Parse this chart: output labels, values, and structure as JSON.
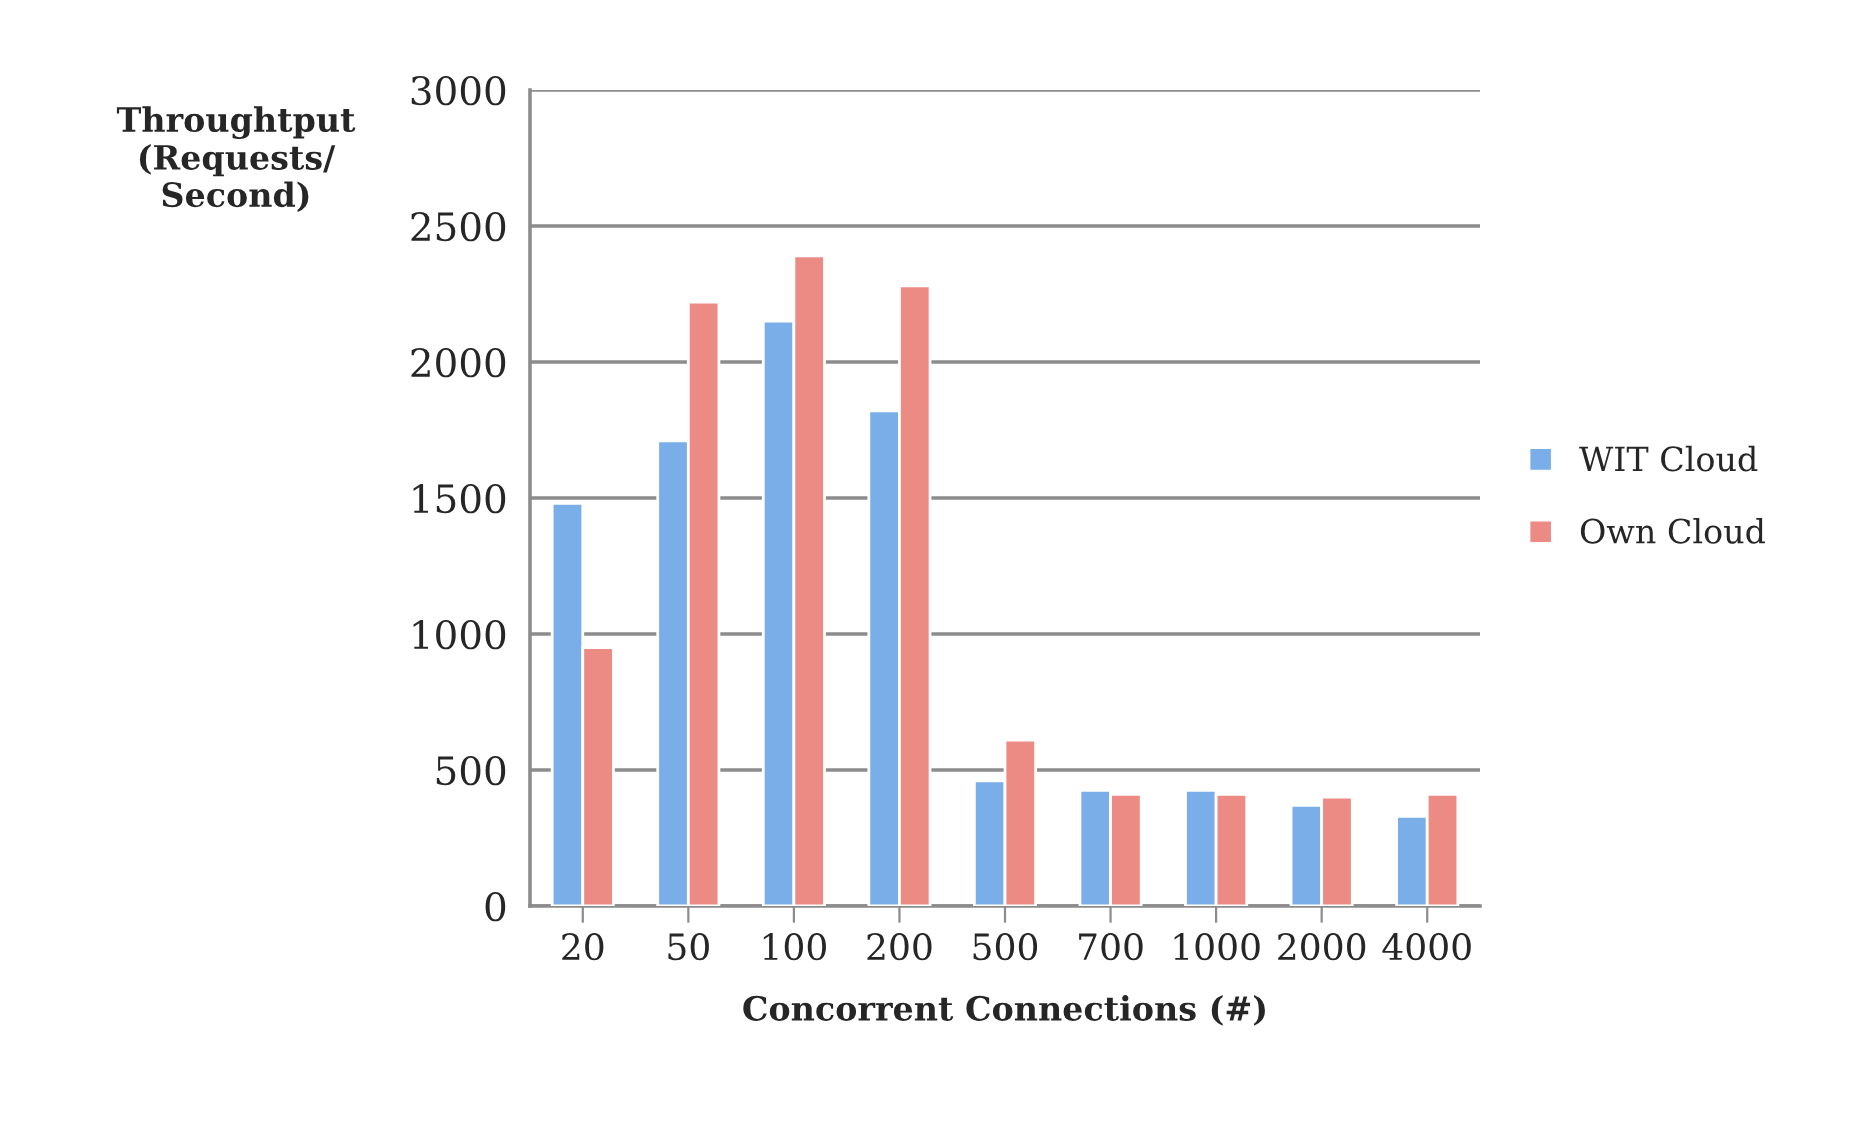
{
  "chart_data": {
    "type": "bar",
    "categories": [
      "20",
      "50",
      "100",
      "200",
      "500",
      "700",
      "1000",
      "2000",
      "4000"
    ],
    "series": [
      {
        "name": "WIT Cloud",
        "color": "#7aaee8",
        "values": [
          1480,
          1710,
          2150,
          1820,
          460,
          425,
          425,
          370,
          330
        ]
      },
      {
        "name": "Own Cloud",
        "color": "#ec8a84",
        "values": [
          950,
          2220,
          2390,
          2280,
          610,
          410,
          410,
          400,
          410
        ]
      }
    ],
    "xlabel": "Concorrent Connections (#)",
    "ylabel": "Throughtput\n(Requests/\nSecond)",
    "ylim": [
      0,
      3000
    ],
    "yticks": [
      0,
      500,
      1000,
      1500,
      2000,
      2500,
      3000
    ],
    "grid": "y",
    "legend": "right"
  }
}
